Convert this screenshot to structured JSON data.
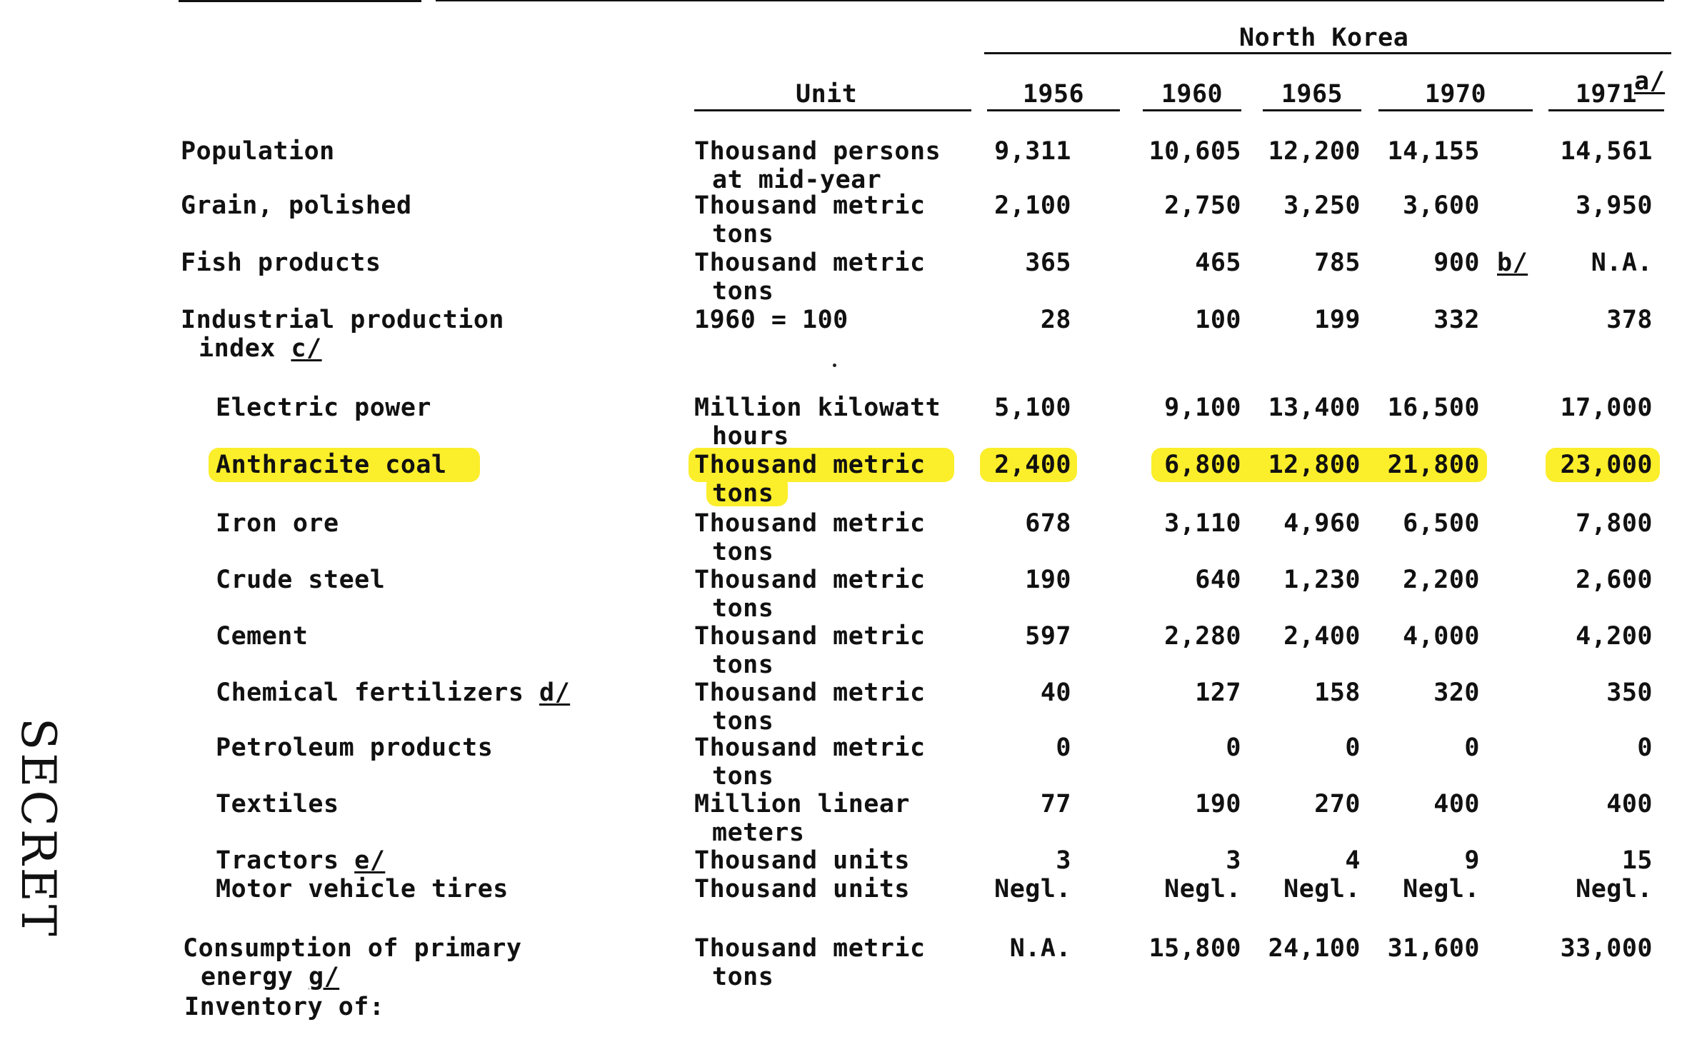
{
  "page_label": "SECRET",
  "header": {
    "group": "North Korea",
    "unit": "Unit",
    "years": [
      "1956",
      "1960",
      "1965",
      "1970",
      "1971"
    ],
    "year_footnote": "a/"
  },
  "rows": [
    {
      "label": [
        "Population"
      ],
      "label_fn": "",
      "unit": [
        "Thousand persons",
        "at mid-year"
      ],
      "values": [
        "9,311",
        "10,605",
        "12,200",
        "14,155",
        "14,561"
      ],
      "value_fn": [
        "",
        "",
        "",
        "",
        ""
      ]
    },
    {
      "label": [
        "Grain, polished"
      ],
      "label_fn": "",
      "unit": [
        "Thousand metric",
        "tons"
      ],
      "values": [
        "2,100",
        "2,750",
        "3,250",
        "3,600",
        "3,950"
      ],
      "value_fn": [
        "",
        "",
        "",
        "",
        ""
      ]
    },
    {
      "label": [
        "Fish products"
      ],
      "label_fn": "",
      "unit": [
        "Thousand metric",
        "tons"
      ],
      "values": [
        "365",
        "465",
        "785",
        "900",
        "N.A."
      ],
      "value_fn": [
        "",
        "",
        "",
        "b/",
        ""
      ]
    },
    {
      "label": [
        "Industrial production",
        "index"
      ],
      "label_fn": "c/",
      "unit": [
        "1960 = 100"
      ],
      "values": [
        "28",
        "100",
        "199",
        "332",
        "378"
      ],
      "value_fn": [
        "",
        "",
        "",
        "",
        ""
      ]
    },
    {
      "label": [
        "Electric power"
      ],
      "label_fn": "",
      "unit": [
        "Million kilowatt",
        "hours"
      ],
      "values": [
        "5,100",
        "9,100",
        "13,400",
        "16,500",
        "17,000"
      ],
      "value_fn": [
        "",
        "",
        "",
        "",
        ""
      ]
    },
    {
      "label": [
        "Anthracite coal"
      ],
      "label_fn": "",
      "unit": [
        "Thousand metric",
        "tons"
      ],
      "values": [
        "2,400",
        "6,800",
        "12,800",
        "21,800",
        "23,000"
      ],
      "value_fn": [
        "",
        "",
        "",
        "",
        ""
      ],
      "highlight": true
    },
    {
      "label": [
        "Iron ore"
      ],
      "label_fn": "",
      "unit": [
        "Thousand metric",
        "tons"
      ],
      "values": [
        "678",
        "3,110",
        "4,960",
        "6,500",
        "7,800"
      ],
      "value_fn": [
        "",
        "",
        "",
        "",
        ""
      ]
    },
    {
      "label": [
        "Crude steel"
      ],
      "label_fn": "",
      "unit": [
        "Thousand metric",
        "tons"
      ],
      "values": [
        "190",
        "640",
        "1,230",
        "2,200",
        "2,600"
      ],
      "value_fn": [
        "",
        "",
        "",
        "",
        ""
      ]
    },
    {
      "label": [
        "Cement"
      ],
      "label_fn": "",
      "unit": [
        "Thousand metric",
        "tons"
      ],
      "values": [
        "597",
        "2,280",
        "2,400",
        "4,000",
        "4,200"
      ],
      "value_fn": [
        "",
        "",
        "",
        "",
        ""
      ]
    },
    {
      "label": [
        "Chemical fertilizers"
      ],
      "label_fn": "d/",
      "unit": [
        "Thousand metric",
        "tons"
      ],
      "values": [
        "40",
        "127",
        "158",
        "320",
        "350"
      ],
      "value_fn": [
        "",
        "",
        "",
        "",
        ""
      ]
    },
    {
      "label": [
        "Petroleum products"
      ],
      "label_fn": "",
      "unit": [
        "Thousand metric",
        "tons"
      ],
      "values": [
        "0",
        "0",
        "0",
        "0",
        "0"
      ],
      "value_fn": [
        "",
        "",
        "",
        "",
        ""
      ]
    },
    {
      "label": [
        "Textiles"
      ],
      "label_fn": "",
      "unit": [
        "Million linear",
        "meters"
      ],
      "values": [
        "77",
        "190",
        "270",
        "400",
        "400"
      ],
      "value_fn": [
        "",
        "",
        "",
        "",
        ""
      ]
    },
    {
      "label": [
        "Tractors"
      ],
      "label_fn": "e/",
      "unit": [
        "Thousand units"
      ],
      "values": [
        "3",
        "3",
        "4",
        "9",
        "15"
      ],
      "value_fn": [
        "",
        "",
        "",
        "",
        ""
      ]
    },
    {
      "label": [
        "Motor vehicle tires"
      ],
      "label_fn": "",
      "unit": [
        "Thousand units"
      ],
      "values": [
        "Negl.",
        "Negl.",
        "Negl.",
        "Negl.",
        "Negl."
      ],
      "value_fn": [
        "",
        "",
        "",
        "",
        ""
      ]
    },
    {
      "label": [
        "Consumption of primary",
        "energy"
      ],
      "label_fn": "g/",
      "unit": [
        "Thousand metric",
        "tons"
      ],
      "values": [
        "N.A.",
        "15,800",
        "24,100",
        "31,600",
        "33,000"
      ],
      "value_fn": [
        "",
        "",
        "",
        "",
        ""
      ]
    },
    {
      "label": [
        "Inventory of:"
      ],
      "label_fn": "",
      "unit": [],
      "values": [],
      "value_fn": []
    }
  ],
  "colors": {
    "highlight": "#fbee2b",
    "ink": "#111111"
  }
}
